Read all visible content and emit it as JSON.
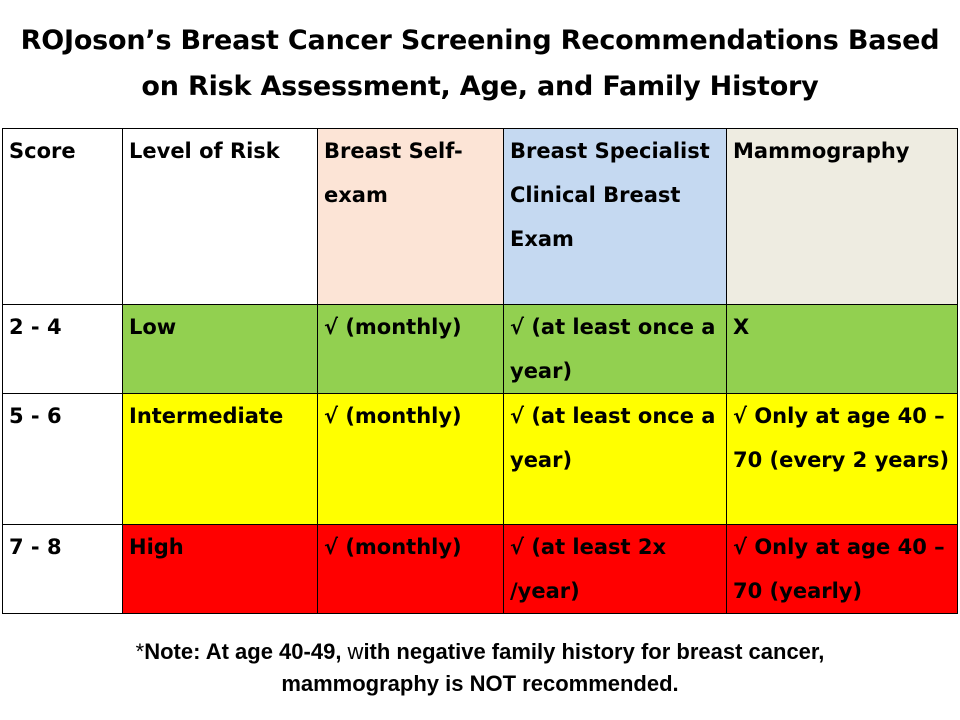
{
  "title": {
    "line1": "ROJoson’s Breast Cancer Screening Recommendations Based",
    "line2": "on Risk Assessment, Age, and Family History"
  },
  "table": {
    "headers": [
      "Score",
      "Level of Risk",
      "Breast Self-exam",
      "Breast Specialist Clinical Breast Exam",
      "Mammography"
    ],
    "rows": [
      {
        "score": "2 - 4",
        "risk": "Low",
        "self_exam": "√ (monthly)",
        "clinical_exam": "√ (at least once a year)",
        "mammography": "X",
        "color": "#92d050"
      },
      {
        "score": "5 - 6",
        "risk": "Intermediate",
        "self_exam": "√ (monthly)",
        "clinical_exam": "√ (at least once a year)",
        "mammography": "√ Only at age 40 – 70 (every 2 years)",
        "color": "#ffff00"
      },
      {
        "score": "7 - 8",
        "risk": "High",
        "self_exam": "√ (monthly)",
        "clinical_exam": "√ (at least 2x /year)",
        "mammography": "√ Only at age 40 – 70 (yearly)",
        "color": "#ff0000"
      }
    ],
    "header_colors": {
      "self_exam": "#fce4d6",
      "clinical_exam": "#c5d9f1",
      "mammography": "#eeece1"
    }
  },
  "note": {
    "prefix": "*",
    "bold1": "Note: At age 40-49, ",
    "plain1": "w",
    "bold2": "ith negative family history for breast cancer,",
    "line2": "mammography is NOT recommended."
  }
}
